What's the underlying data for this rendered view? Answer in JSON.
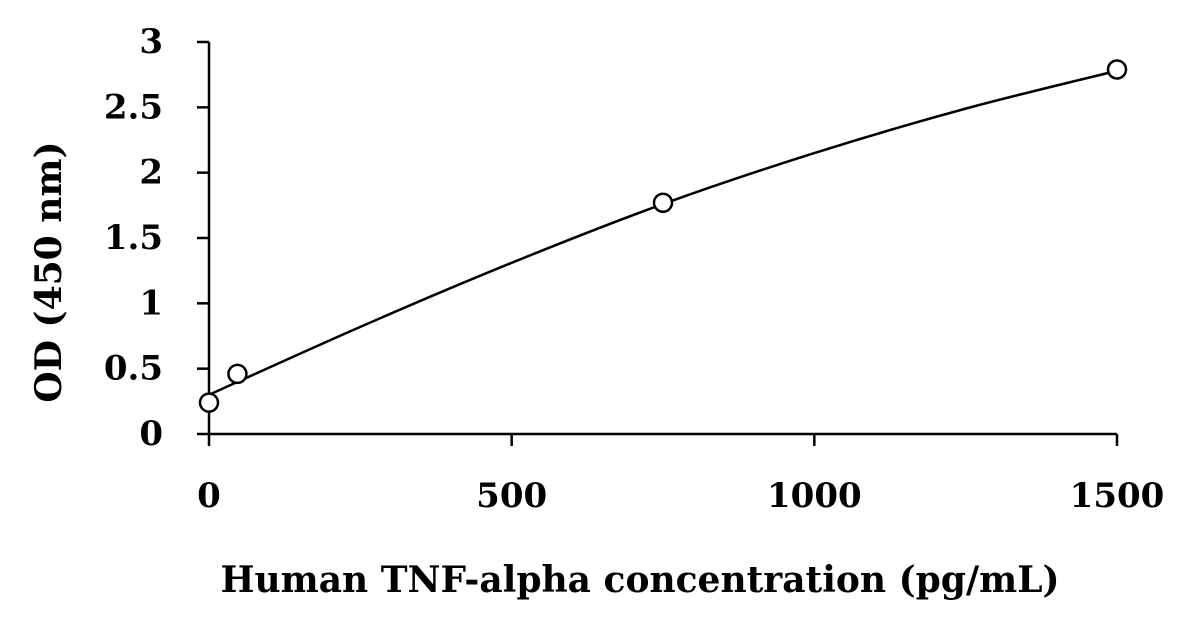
{
  "chart_data": {
    "type": "scatter",
    "xlabel": "Human TNF-alpha concentration (pg/mL)",
    "ylabel": "OD (450 nm)",
    "series": [
      {
        "color": "#000000",
        "x": [
          0,
          47,
          750,
          1500
        ],
        "values": [
          0.24,
          0.46,
          1.77,
          2.79
        ]
      }
    ],
    "trendline": {
      "color": "#000000",
      "x": [
        0,
        250,
        500,
        750,
        1000,
        1250,
        1500
      ],
      "values": [
        0.3,
        0.82,
        1.31,
        1.76,
        2.15,
        2.49,
        2.78
      ]
    },
    "xlim": [
      0,
      1500
    ],
    "xticks": [
      0,
      500,
      1000,
      1500
    ],
    "ylim": [
      0,
      3
    ],
    "yticks": [
      0,
      0.5,
      1,
      1.5,
      2,
      2.5,
      3
    ],
    "grid": false
  }
}
